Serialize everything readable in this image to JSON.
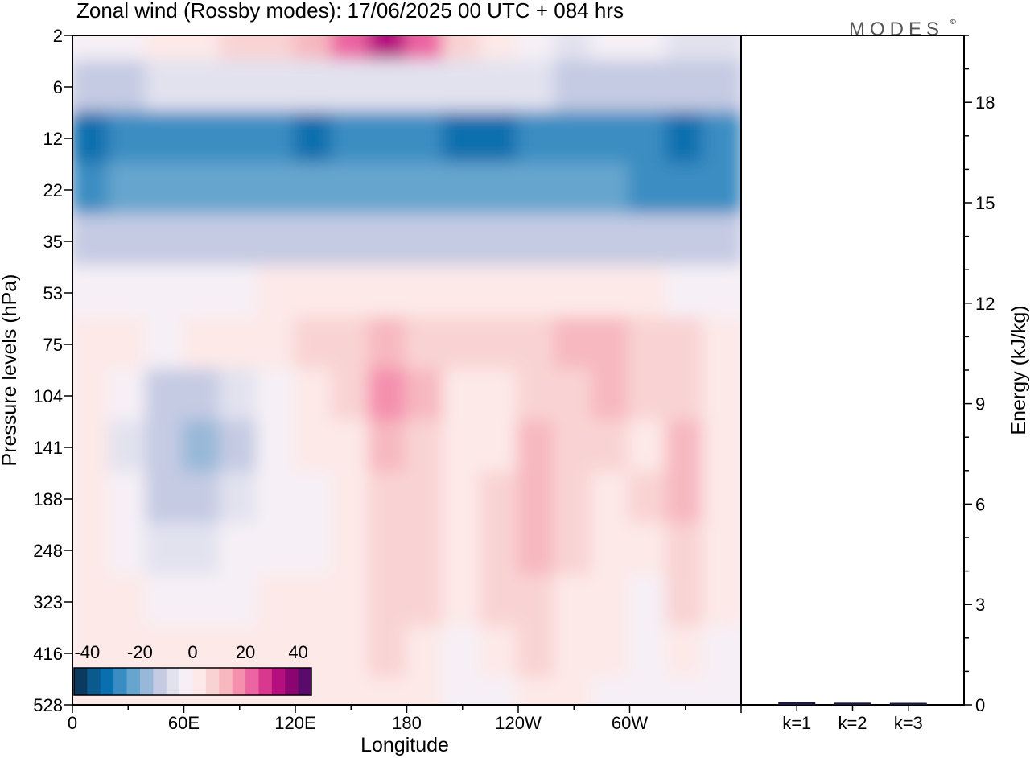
{
  "chart_data": {
    "type": "heatmap",
    "title": "Zonal wind (Rossby modes):  17/06/2025  00 UTC  + 084 hrs",
    "brand": "MODES",
    "brand_mark": "©",
    "xlabel": "Longitude",
    "ylabel": "Pressure levels (hPa)",
    "y2label": "Energy (kJ/kg)",
    "x_ticks": [
      "0",
      "60E",
      "120E",
      "180",
      "120W",
      "60W"
    ],
    "y_ticks": [
      "2",
      "6",
      "12",
      "22",
      "35",
      "53",
      "75",
      "104",
      "141",
      "188",
      "248",
      "323",
      "416",
      "528"
    ],
    "y2_ticks": [
      "0",
      "3",
      "6",
      "9",
      "12",
      "15",
      "18"
    ],
    "colorbar": {
      "ticks": [
        "-40",
        "-20",
        "0",
        "20",
        "40"
      ],
      "range": [
        -45,
        45
      ],
      "colors": [
        "#0b3a5e",
        "#0a5a8e",
        "#0a6fae",
        "#3a8dc2",
        "#66a6ce",
        "#97b8d8",
        "#c5cbe3",
        "#e2e2ef",
        "#f6f0f6",
        "#fde9e8",
        "#f9d3d3",
        "#f7b8c0",
        "#f48fae",
        "#ec64a2",
        "#d9388f",
        "#b60e7f",
        "#8a056f",
        "#5a0a6a"
      ]
    },
    "contour_field": {
      "x_range": [
        0,
        360
      ],
      "rows": [
        {
          "level": "2",
          "values": [
            -5,
            -5,
            0,
            0,
            5,
            5,
            10,
            20,
            30,
            20,
            5,
            0,
            -5,
            -10,
            -5,
            -5,
            -10,
            -10
          ]
        },
        {
          "level": "6",
          "values": [
            -15,
            -15,
            -10,
            -10,
            -10,
            -10,
            -10,
            -10,
            -10,
            -10,
            -10,
            -10,
            -10,
            -15,
            -15,
            -15,
            -15,
            -15
          ]
        },
        {
          "level": "12",
          "values": [
            -35,
            -30,
            -30,
            -30,
            -30,
            -30,
            -35,
            -30,
            -30,
            -30,
            -35,
            -35,
            -30,
            -30,
            -30,
            -30,
            -35,
            -30
          ]
        },
        {
          "level": "22",
          "values": [
            -30,
            -25,
            -25,
            -25,
            -25,
            -25,
            -25,
            -25,
            -25,
            -25,
            -25,
            -25,
            -25,
            -25,
            -25,
            -30,
            -30,
            -30
          ]
        },
        {
          "level": "35",
          "values": [
            -15,
            -15,
            -15,
            -15,
            -15,
            -15,
            -15,
            -15,
            -15,
            -15,
            -15,
            -15,
            -15,
            -15,
            -15,
            -15,
            -15,
            -15
          ]
        },
        {
          "level": "53",
          "values": [
            -5,
            -5,
            -5,
            -5,
            -5,
            0,
            0,
            0,
            0,
            0,
            0,
            0,
            0,
            0,
            0,
            0,
            -5,
            -5
          ]
        },
        {
          "level": "75",
          "values": [
            0,
            0,
            -5,
            0,
            0,
            0,
            5,
            5,
            10,
            5,
            5,
            5,
            5,
            10,
            10,
            5,
            5,
            0
          ]
        },
        {
          "level": "104",
          "values": [
            0,
            -5,
            -15,
            -15,
            -10,
            -5,
            0,
            5,
            15,
            10,
            0,
            0,
            5,
            5,
            10,
            5,
            5,
            0
          ]
        },
        {
          "level": "141",
          "values": [
            0,
            -10,
            -15,
            -20,
            -15,
            -5,
            0,
            0,
            10,
            5,
            0,
            0,
            10,
            5,
            5,
            0,
            10,
            0
          ]
        },
        {
          "level": "188",
          "values": [
            0,
            -5,
            -15,
            -15,
            -10,
            -5,
            -5,
            0,
            5,
            5,
            0,
            5,
            10,
            5,
            0,
            5,
            10,
            0
          ]
        },
        {
          "level": "248",
          "values": [
            0,
            -5,
            -10,
            -10,
            -5,
            -5,
            -5,
            0,
            5,
            5,
            0,
            5,
            10,
            5,
            0,
            0,
            5,
            0
          ]
        },
        {
          "level": "323",
          "values": [
            0,
            0,
            -5,
            -5,
            -5,
            0,
            0,
            0,
            5,
            5,
            0,
            5,
            5,
            0,
            0,
            -5,
            5,
            0
          ]
        },
        {
          "level": "416",
          "values": [
            0,
            0,
            0,
            0,
            0,
            0,
            0,
            0,
            5,
            0,
            -5,
            0,
            5,
            0,
            0,
            -5,
            0,
            -5
          ]
        },
        {
          "level": "528",
          "values": [
            0,
            0,
            0,
            0,
            0,
            0,
            0,
            0,
            0,
            0,
            -5,
            -5,
            0,
            0,
            -5,
            -5,
            -5,
            -5
          ]
        }
      ]
    },
    "energy_bars": {
      "ylim": [
        0,
        20
      ],
      "categories": [
        "k=1",
        "k=2",
        "k=3"
      ],
      "values": [
        0.05,
        0.04,
        0.02
      ]
    }
  }
}
